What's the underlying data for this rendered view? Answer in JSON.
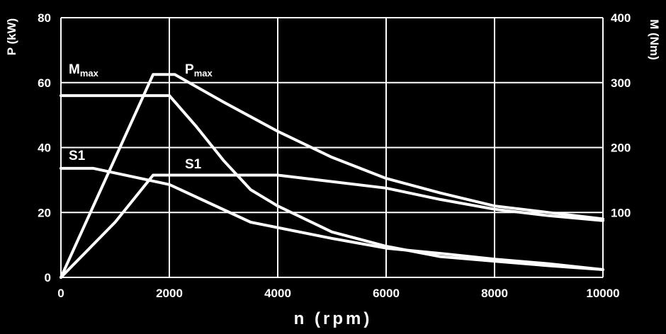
{
  "chart_data": {
    "type": "line",
    "title": "",
    "xlabel": "n (rpm)",
    "ylabel": "P (kW)",
    "y2label": "M (Nm)",
    "xlim": [
      0,
      10000
    ],
    "ylim": [
      0,
      80
    ],
    "y2lim": [
      0,
      400
    ],
    "x_ticks": [
      0,
      2000,
      4000,
      6000,
      8000,
      10000
    ],
    "y_ticks": [
      0,
      20,
      40,
      60,
      80
    ],
    "y2_ticks": [
      100,
      200,
      300,
      400
    ],
    "grid": true,
    "annotations": [
      {
        "main": "M",
        "sub": "max"
      },
      {
        "main": "P",
        "sub": "max"
      },
      {
        "main": "S1",
        "sub": ""
      },
      {
        "main": "S1",
        "sub": ""
      }
    ],
    "series": [
      {
        "axis": "power",
        "points": [
          [
            0,
            0
          ],
          [
            1700,
            62.5
          ],
          [
            2100,
            62.5
          ],
          [
            3000,
            54
          ],
          [
            4000,
            45
          ],
          [
            5000,
            37
          ],
          [
            6000,
            30.5
          ],
          [
            7000,
            26
          ],
          [
            8000,
            22
          ],
          [
            9000,
            20
          ],
          [
            10000,
            18
          ]
        ]
      },
      {
        "axis": "torque",
        "points": [
          [
            0,
            280
          ],
          [
            2000,
            280
          ],
          [
            2500,
            232
          ],
          [
            3000,
            180
          ],
          [
            3500,
            135
          ],
          [
            4000,
            110
          ],
          [
            5000,
            70
          ],
          [
            6000,
            48
          ],
          [
            7000,
            32
          ],
          [
            8000,
            25
          ],
          [
            9000,
            18
          ],
          [
            10000,
            12
          ]
        ]
      },
      {
        "axis": "power",
        "points": [
          [
            0,
            0
          ],
          [
            1000,
            17
          ],
          [
            1700,
            31.5
          ],
          [
            4000,
            31.5
          ],
          [
            6000,
            27.5
          ],
          [
            7000,
            24
          ],
          [
            8000,
            21
          ],
          [
            9000,
            19
          ],
          [
            10000,
            17.5
          ]
        ]
      },
      {
        "axis": "torque",
        "points": [
          [
            0,
            168
          ],
          [
            600,
            168
          ],
          [
            2000,
            143
          ],
          [
            3500,
            85
          ],
          [
            5000,
            60
          ],
          [
            6000,
            45
          ],
          [
            7000,
            37
          ],
          [
            8000,
            28
          ],
          [
            9000,
            21
          ],
          [
            10000,
            12
          ]
        ]
      }
    ]
  }
}
